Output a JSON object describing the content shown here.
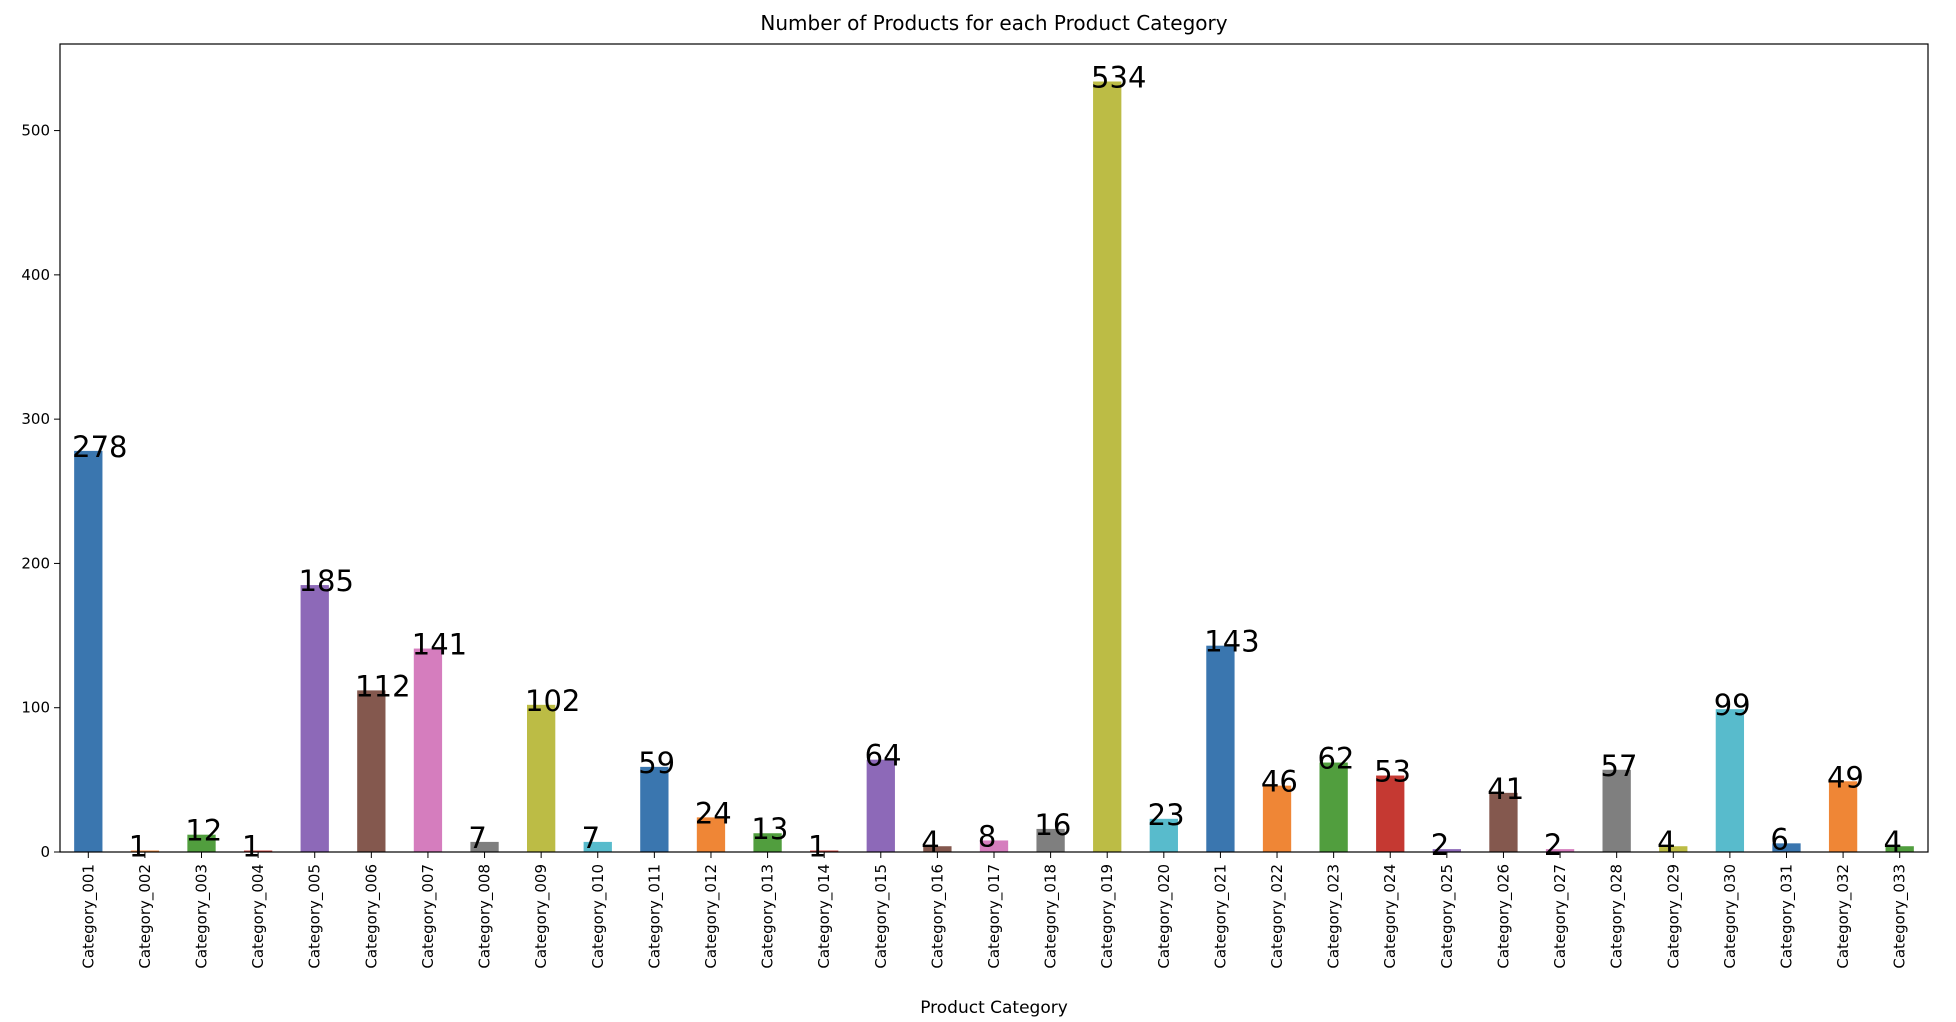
{
  "chart_data": {
    "type": "bar",
    "title": "Number of Products for each Product Category",
    "xlabel": "Product Category",
    "ylabel": "",
    "ylim": [
      0,
      560
    ],
    "yticks": [
      0,
      100,
      200,
      300,
      400,
      500
    ],
    "grid": false,
    "categories": [
      "Category_001",
      "Category_002",
      "Category_003",
      "Category_004",
      "Category_005",
      "Category_006",
      "Category_007",
      "Category_008",
      "Category_009",
      "Category_010",
      "Category_011",
      "Category_012",
      "Category_013",
      "Category_014",
      "Category_015",
      "Category_016",
      "Category_017",
      "Category_018",
      "Category_019",
      "Category_020",
      "Category_021",
      "Category_022",
      "Category_023",
      "Category_024",
      "Category_025",
      "Category_026",
      "Category_027",
      "Category_028",
      "Category_029",
      "Category_030",
      "Category_031",
      "Category_032",
      "Category_033"
    ],
    "values": [
      278,
      1,
      12,
      1,
      185,
      112,
      141,
      7,
      102,
      7,
      59,
      24,
      13,
      1,
      64,
      4,
      8,
      16,
      534,
      23,
      143,
      46,
      62,
      53,
      2,
      41,
      2,
      57,
      4,
      99,
      6,
      49,
      4
    ],
    "colors": [
      "#3a76af",
      "#ef8636",
      "#519e3e",
      "#c53932",
      "#8d69b8",
      "#84584e",
      "#d57dbe",
      "#7f7f7f",
      "#bcbc45",
      "#58bbcc"
    ]
  }
}
